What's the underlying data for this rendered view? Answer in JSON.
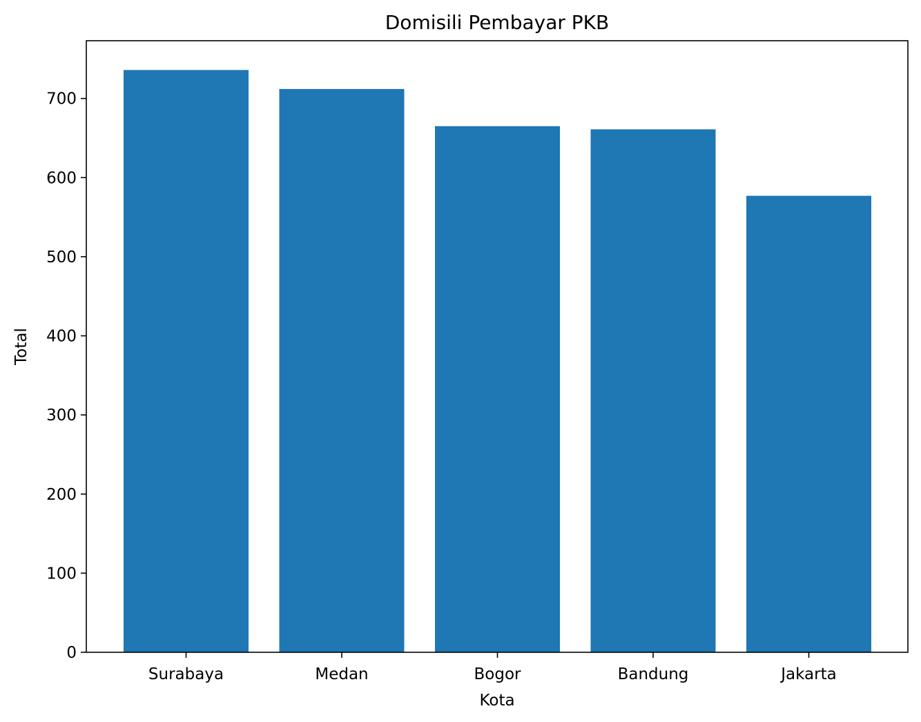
{
  "chart_data": {
    "type": "bar",
    "title": "Domisili Pembayar PKB",
    "xlabel": "Kota",
    "ylabel": "Total",
    "categories": [
      "Surabaya",
      "Medan",
      "Bogor",
      "Bandung",
      "Jakarta"
    ],
    "values": [
      736,
      712,
      665,
      661,
      577
    ],
    "ylim": [
      0,
      773
    ],
    "yticks": [
      0,
      100,
      200,
      300,
      400,
      500,
      600,
      700
    ],
    "grid": false,
    "bar_color": "#1f77b4"
  }
}
